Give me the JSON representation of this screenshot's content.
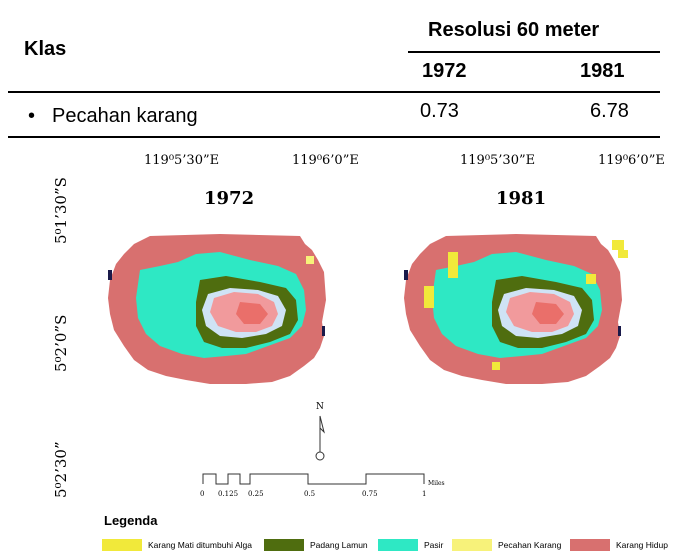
{
  "table": {
    "header_class": "Klas",
    "header_resolution": "Resolusi 60 meter",
    "year_a": "1972",
    "year_b": "1981",
    "row_bullet": "•",
    "row_label": "Pecahan karang",
    "row_val_a": "0.73",
    "row_val_b": "6.78"
  },
  "maps": {
    "left_year": "1972",
    "right_year": "1981",
    "lon_1": "119⁰5’30”E",
    "lon_2": "119⁰6’0”E",
    "lat_1": "5⁰1’30”S",
    "lat_2": "5⁰2’0”S",
    "lat_3": "5⁰2’30”",
    "north_label": "N"
  },
  "scale": {
    "ticks": [
      "0",
      "0.125",
      "0.25",
      "0.5",
      "0.75",
      "1"
    ],
    "unit": "Miles"
  },
  "legend": {
    "title": "Legenda",
    "items": [
      {
        "label": "Karang Mati ditumbuhi Alga",
        "color": "#f1e93a"
      },
      {
        "label": "Padang Lamun",
        "color": "#4f6d0f"
      },
      {
        "label": "Pasir",
        "color": "#2ee8c4"
      },
      {
        "label": "Pecahan Karang",
        "color": "#f7f27a"
      },
      {
        "label": "Karang Hidup",
        "color": "#d8706f"
      }
    ]
  },
  "colors": {
    "coral": "#d8706f",
    "sand": "#2ee8c4",
    "seagrass": "#4f6d0f",
    "rubble": "#f1e93a",
    "island": "#f19a9c",
    "shore": "#cfe3f5"
  }
}
